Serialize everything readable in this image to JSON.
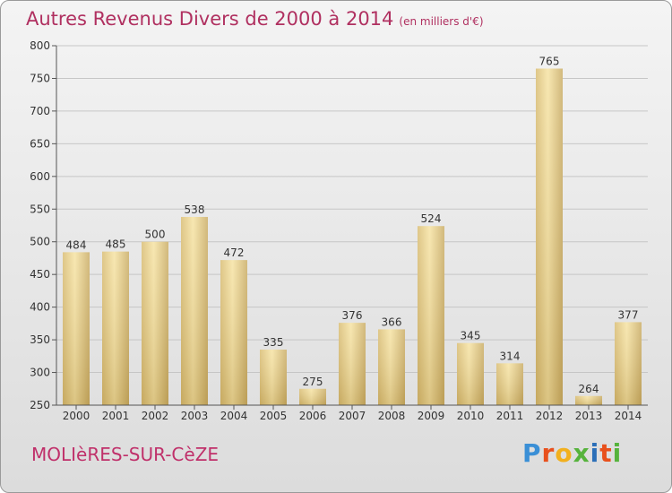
{
  "header": {
    "title": "Autres Revenus Divers de 2000 à 2014",
    "subtitle": "(en milliers d'€)"
  },
  "footer": {
    "town": "MOLIèRES-SUR-CèZE",
    "logo": [
      "P",
      "r",
      "o",
      "x",
      "i",
      "t",
      "i"
    ]
  },
  "colors": {
    "title": "#b03060",
    "bar_light": "#f5df9c",
    "bar_dark": "#c8ab62",
    "grid": "#c8c8c8"
  },
  "chart_data": {
    "type": "bar",
    "title": "Autres Revenus Divers de 2000 à 2014",
    "subtitle": "(en milliers d'€)",
    "xlabel": "",
    "ylabel": "",
    "categories": [
      "2000",
      "2001",
      "2002",
      "2003",
      "2004",
      "2005",
      "2006",
      "2007",
      "2008",
      "2009",
      "2010",
      "2011",
      "2012",
      "2013",
      "2014"
    ],
    "values": [
      484,
      485,
      500,
      538,
      472,
      335,
      275,
      376,
      366,
      524,
      345,
      314,
      765,
      264,
      377
    ],
    "ylim": [
      250,
      800
    ],
    "yticks": [
      250,
      300,
      350,
      400,
      450,
      500,
      550,
      600,
      650,
      700,
      750,
      800
    ],
    "grid": true,
    "data_labels": true
  }
}
